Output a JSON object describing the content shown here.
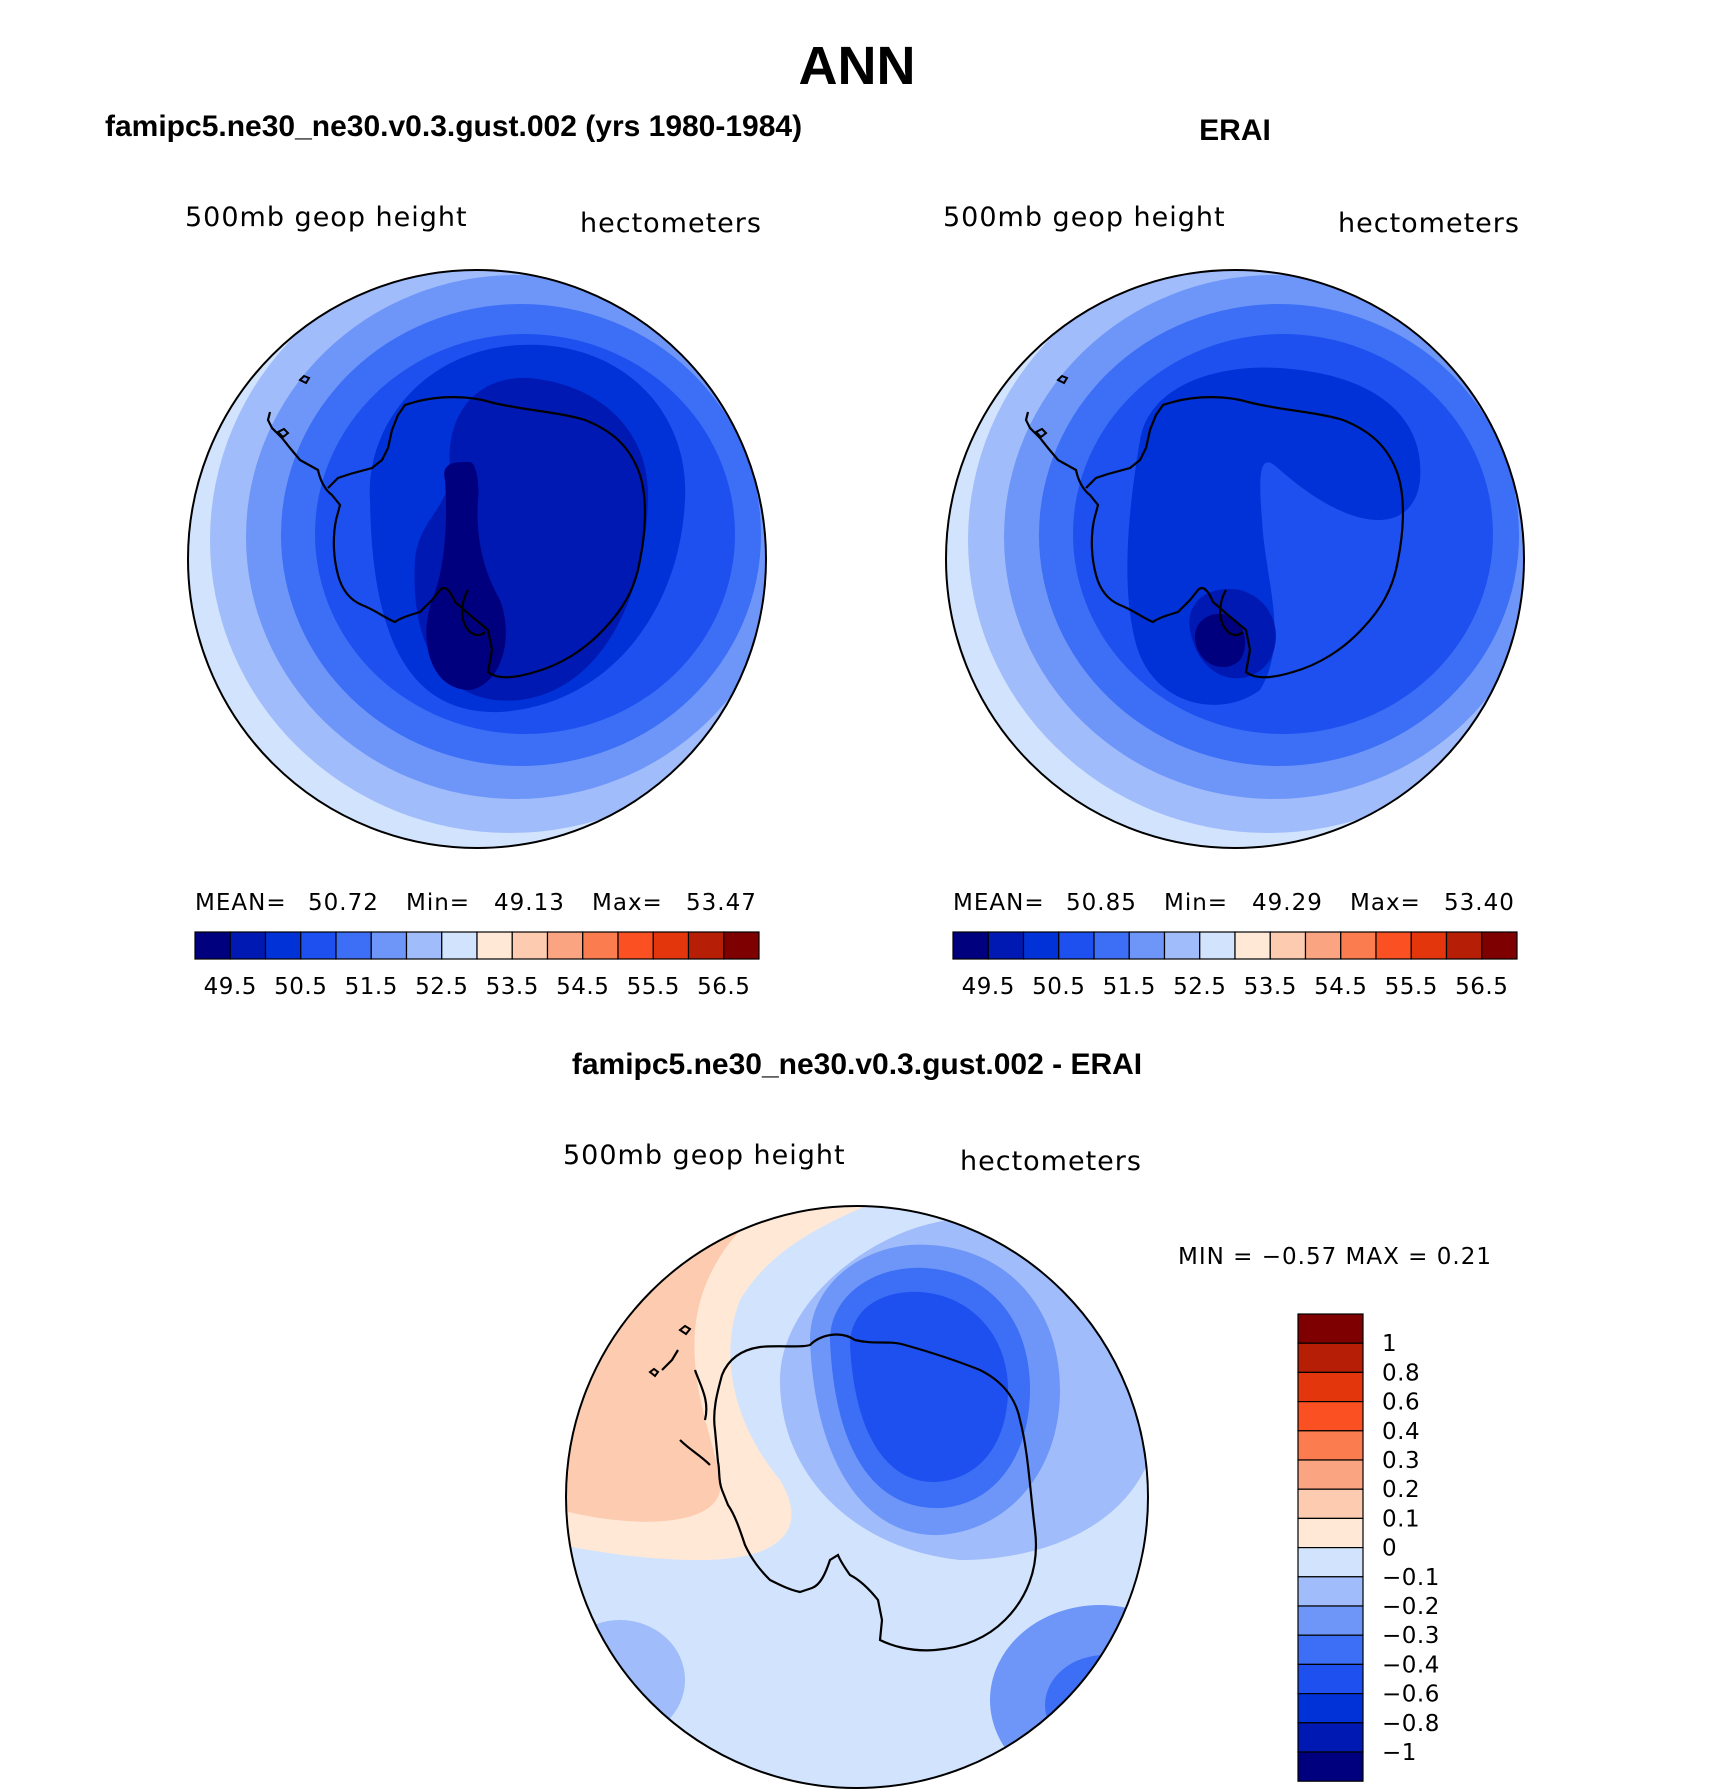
{
  "figure_title": "ANN",
  "colors": {
    "abs_levels": [
      "#00007f",
      "#0019b3",
      "#0032d8",
      "#1e50f0",
      "#3c6ef6",
      "#6e96f8",
      "#a0bcfb",
      "#d2e4fd",
      "#ffe8d6",
      "#fccbb0",
      "#fba482",
      "#fb7c4e",
      "#fb5022",
      "#e3360d",
      "#b61e05",
      "#7f0000"
    ],
    "diff_levels": [
      "#00007f",
      "#0019b3",
      "#0032d8",
      "#1e50f0",
      "#3c6ef6",
      "#6e96f8",
      "#a0bcfb",
      "#d2e4fd",
      "#ffe8d6",
      "#fccbb0",
      "#fba482",
      "#fb7c4e",
      "#fb5022",
      "#e3360d",
      "#b61e05",
      "#7f0000"
    ]
  },
  "chart_data": [
    {
      "type": "heatmap",
      "id": "model",
      "title": "famipc5.ne30_ne30.v0.3.gust.002 (yrs 1980-1984)",
      "variable_label": "500mb  geop  height",
      "units_label": "hectometers",
      "projection": "south polar stereographic",
      "mean_label": "MEAN=",
      "mean": "50.72",
      "min_label": "Min=",
      "min": "49.13",
      "max_label": "Max=",
      "max": "53.47",
      "colorbar_ticks": [
        "49.5",
        "50.5",
        "51.5",
        "52.5",
        "53.5",
        "54.5",
        "55.5",
        "56.5"
      ],
      "field_rings": [
        49.25,
        49.75,
        50.25,
        50.75,
        51.25,
        51.75,
        52.25,
        52.75,
        53.25
      ]
    },
    {
      "type": "heatmap",
      "id": "obs",
      "title": "ERAI",
      "variable_label": "500mb  geop  height",
      "units_label": "hectometers",
      "projection": "south polar stereographic",
      "mean_label": "MEAN=",
      "mean": "50.85",
      "min_label": "Min=",
      "min": "49.29",
      "max_label": "Max=",
      "max": "53.40",
      "colorbar_ticks": [
        "49.5",
        "50.5",
        "51.5",
        "52.5",
        "53.5",
        "54.5",
        "55.5",
        "56.5"
      ],
      "field_rings": [
        49.25,
        49.75,
        50.25,
        50.75,
        51.25,
        51.75,
        52.25,
        52.75,
        53.25
      ]
    },
    {
      "type": "heatmap",
      "id": "diff",
      "title": "famipc5.ne30_ne30.v0.3.gust.002 - ERAI",
      "variable_label": "500mb  geop  height",
      "units_label": "hectometers",
      "projection": "south polar stereographic",
      "minmax_label": "MIN =    −0.57 MAX =     0.21",
      "colorbar_ticks": [
        "1",
        "0.8",
        "0.6",
        "0.4",
        "0.3",
        "0.2",
        "0.1",
        "0",
        "−0.1",
        "−0.2",
        "−0.3",
        "−0.4",
        "−0.6",
        "−0.8",
        "−1"
      ]
    }
  ]
}
